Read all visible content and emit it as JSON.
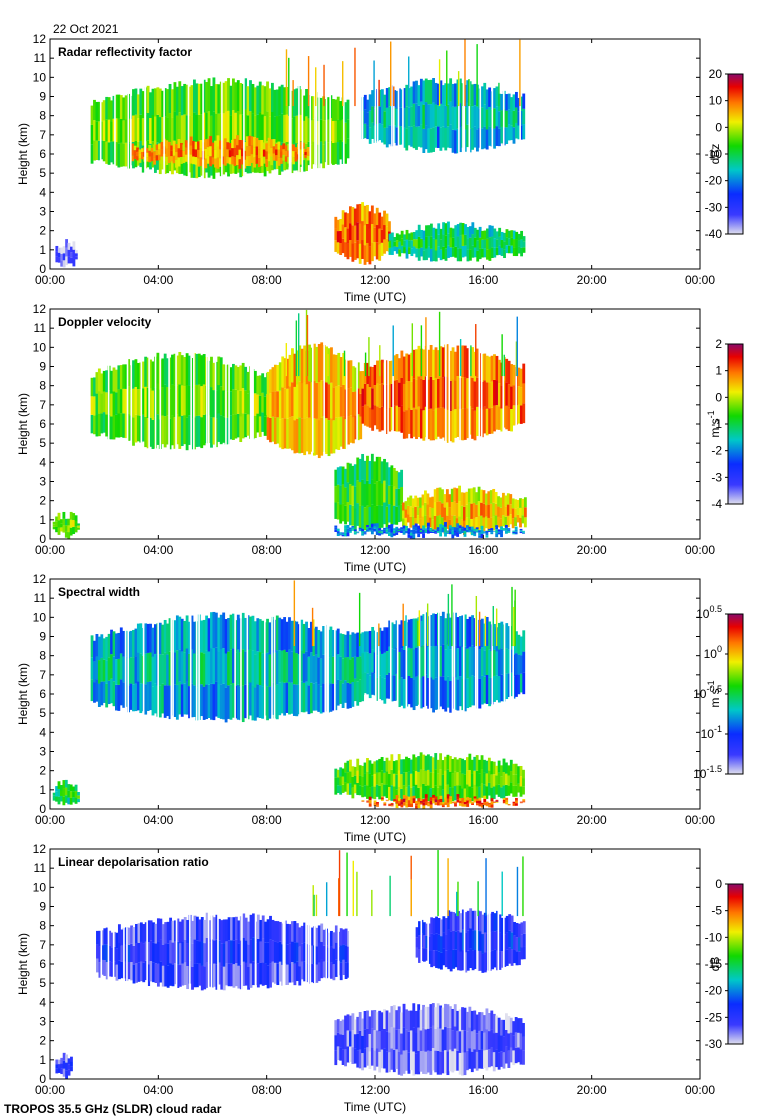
{
  "figure": {
    "date": "22 Oct 2021",
    "footer": "TROPOS 35.5 GHz (SLDR) cloud radar"
  },
  "chart_data": [
    {
      "type": "heatmap",
      "title": "Radar reflectivity factor",
      "xlabel": "Time (UTC)",
      "ylabel": "Height (km)",
      "x_ticks": [
        "00:00",
        "04:00",
        "08:00",
        "12:00",
        "16:00",
        "20:00",
        "00:00"
      ],
      "xlim_hours": [
        0,
        24
      ],
      "ylim_km": [
        0,
        12
      ],
      "y_ticks": [
        0,
        1,
        2,
        3,
        4,
        5,
        6,
        7,
        8,
        9,
        10,
        11,
        12
      ],
      "colorbar": {
        "label": "dBz",
        "range": [
          -40,
          20
        ],
        "ticks": [
          {
            "v": 20,
            "t": "20"
          },
          {
            "v": 10,
            "t": "10"
          },
          {
            "v": 0,
            "t": "0"
          },
          {
            "v": -10,
            "t": "-10"
          },
          {
            "v": -20,
            "t": "-20"
          },
          {
            "v": -30,
            "t": "-30"
          },
          {
            "v": -40,
            "t": "-40"
          }
        ]
      },
      "regions": [
        {
          "t0": 1.5,
          "t1": 11.0,
          "h0": 4.7,
          "h1": 10.0,
          "level": 0.55
        },
        {
          "t0": 3.0,
          "t1": 9.5,
          "h0": 5.2,
          "h1": 7.0,
          "level": 0.75
        },
        {
          "t0": 11.5,
          "t1": 17.5,
          "h0": 6.0,
          "h1": 10.0,
          "level": 0.35
        },
        {
          "t0": 10.5,
          "t1": 12.5,
          "h0": 0.2,
          "h1": 3.5,
          "level": 0.78
        },
        {
          "t0": 12.5,
          "t1": 17.5,
          "h0": 0.3,
          "h1": 2.5,
          "level": 0.45
        },
        {
          "t0": 0.2,
          "t1": 1.0,
          "h0": 0.0,
          "h1": 1.6,
          "level": 0.02
        }
      ]
    },
    {
      "type": "heatmap",
      "title": "Doppler velocity",
      "xlabel": "Time (UTC)",
      "ylabel": "Height (km)",
      "x_ticks": [
        "00:00",
        "04:00",
        "08:00",
        "12:00",
        "16:00",
        "20:00",
        "00:00"
      ],
      "xlim_hours": [
        0,
        24
      ],
      "ylim_km": [
        0,
        12
      ],
      "y_ticks": [
        0,
        1,
        2,
        3,
        4,
        5,
        6,
        7,
        8,
        9,
        10,
        11,
        12
      ],
      "colorbar": {
        "label": "m s-1",
        "range": [
          -4,
          2
        ],
        "ticks": [
          {
            "v": 2,
            "t": "2"
          },
          {
            "v": 1,
            "t": "1"
          },
          {
            "v": 0,
            "t": "0"
          },
          {
            "v": -1,
            "t": "-1"
          },
          {
            "v": -2,
            "t": "-2"
          },
          {
            "v": -3,
            "t": "-3"
          },
          {
            "v": -4,
            "t": "-4"
          }
        ]
      },
      "regions": [
        {
          "t0": 1.5,
          "t1": 8.0,
          "h0": 4.6,
          "h1": 9.8,
          "level": 0.55
        },
        {
          "t0": 8.0,
          "t1": 11.5,
          "h0": 4.2,
          "h1": 10.3,
          "level": 0.72
        },
        {
          "t0": 11.5,
          "t1": 17.5,
          "h0": 5.0,
          "h1": 10.2,
          "level": 0.78
        },
        {
          "t0": 10.5,
          "t1": 13.0,
          "h0": 0.3,
          "h1": 4.5,
          "level": 0.5
        },
        {
          "t0": 13.0,
          "t1": 17.5,
          "h0": 0.2,
          "h1": 2.8,
          "level": 0.7
        },
        {
          "t0": 10.5,
          "t1": 17.5,
          "h0": 0.0,
          "h1": 0.9,
          "level": 0.3
        },
        {
          "t0": 0.1,
          "t1": 1.0,
          "h0": 0.0,
          "h1": 1.5,
          "level": 0.55
        }
      ]
    },
    {
      "type": "heatmap",
      "title": "Spectral width",
      "xlabel": "Time (UTC)",
      "ylabel": "Height (km)",
      "x_ticks": [
        "00:00",
        "04:00",
        "08:00",
        "12:00",
        "16:00",
        "20:00",
        "00:00"
      ],
      "xlim_hours": [
        0,
        24
      ],
      "ylim_km": [
        0,
        12
      ],
      "y_ticks": [
        0,
        1,
        2,
        3,
        4,
        5,
        6,
        7,
        8,
        9,
        10,
        11,
        12
      ],
      "colorbar": {
        "label": "m s-1",
        "range": [
          -1.5,
          0.5
        ],
        "ticks": [
          {
            "v": 0.5,
            "t": "10^0.5"
          },
          {
            "v": 0,
            "t": "10^0"
          },
          {
            "v": -0.5,
            "t": "10^-0.5"
          },
          {
            "v": -1,
            "t": "10^-1"
          },
          {
            "v": -1.5,
            "t": "10^-1.5"
          }
        ]
      },
      "regions": [
        {
          "t0": 1.5,
          "t1": 11.5,
          "h0": 4.5,
          "h1": 10.3,
          "level": 0.35
        },
        {
          "t0": 11.5,
          "t1": 17.5,
          "h0": 5.0,
          "h1": 10.4,
          "level": 0.32
        },
        {
          "t0": 10.5,
          "t1": 17.5,
          "h0": 0.2,
          "h1": 3.0,
          "level": 0.55
        },
        {
          "t0": 11.5,
          "t1": 17.5,
          "h0": 0.0,
          "h1": 0.8,
          "level": 0.8
        },
        {
          "t0": 0.1,
          "t1": 1.0,
          "h0": 0.0,
          "h1": 1.6,
          "level": 0.45
        }
      ]
    },
    {
      "type": "heatmap",
      "title": "Linear depolarisation ratio",
      "xlabel": "Time (UTC)",
      "ylabel": "Height (km)",
      "x_ticks": [
        "00:00",
        "04:00",
        "08:00",
        "12:00",
        "16:00",
        "20:00",
        "00:00"
      ],
      "xlim_hours": [
        0,
        24
      ],
      "ylim_km": [
        0,
        12
      ],
      "y_ticks": [
        0,
        1,
        2,
        3,
        4,
        5,
        6,
        7,
        8,
        9,
        10,
        11,
        12
      ],
      "colorbar": {
        "label": "dB",
        "range": [
          -30,
          0
        ],
        "ticks": [
          {
            "v": 0,
            "t": "0"
          },
          {
            "v": -5,
            "t": "-5"
          },
          {
            "v": -10,
            "t": "-10"
          },
          {
            "v": -15,
            "t": "-15"
          },
          {
            "v": -20,
            "t": "-20"
          },
          {
            "v": -25,
            "t": "-25"
          },
          {
            "v": -30,
            "t": "-30"
          }
        ]
      },
      "regions": [
        {
          "t0": 1.7,
          "t1": 11.0,
          "h0": 4.6,
          "h1": 8.7,
          "level": 0.12
        },
        {
          "t0": 13.5,
          "t1": 17.5,
          "h0": 5.5,
          "h1": 9.0,
          "level": 0.14
        },
        {
          "t0": 10.5,
          "t1": 17.5,
          "h0": 0.1,
          "h1": 4.0,
          "level": 0.06
        },
        {
          "t0": 0.2,
          "t1": 0.8,
          "h0": 0.0,
          "h1": 1.5,
          "level": 0.1
        }
      ]
    }
  ]
}
